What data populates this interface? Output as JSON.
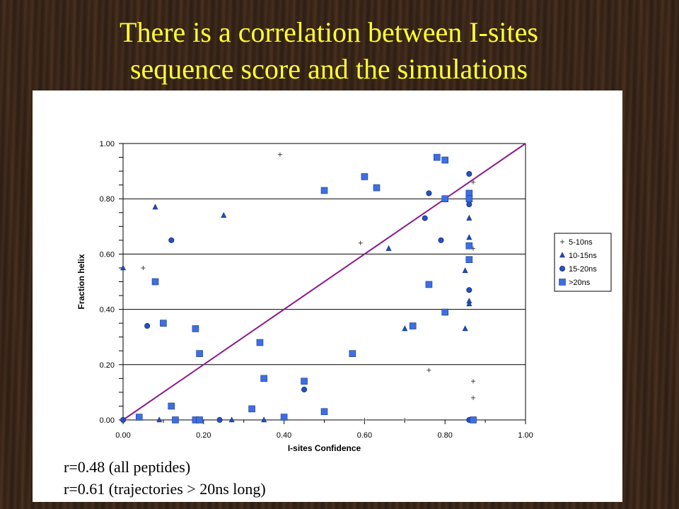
{
  "slide": {
    "title_line1": "There is a correlation between I-sites",
    "title_line2": "sequence score and the simulations",
    "caption_line1": "r=0.48 (all peptides)",
    "caption_line2": "r=0.61 (trajectories > 20ns long)"
  },
  "chart_data": {
    "type": "scatter",
    "title": "",
    "xlabel": "I-sites Confidence",
    "ylabel": "Fraction helix",
    "xlim": [
      0,
      1
    ],
    "ylim": [
      0,
      1
    ],
    "x_ticks": [
      "0.00",
      "0.20",
      "0.40",
      "0.60",
      "0.80",
      "1.00"
    ],
    "y_ticks": [
      "0.00",
      "0.20",
      "0.40",
      "0.60",
      "0.80",
      "1.00"
    ],
    "grid": "horizontal",
    "legend_position": "right",
    "diagonal_line": {
      "from": [
        0,
        0
      ],
      "to": [
        1,
        1
      ],
      "color": "#8b1a8b"
    },
    "series": [
      {
        "name": "5-10ns",
        "marker": "plus",
        "color": "#444444",
        "points": [
          [
            0.39,
            0.96
          ],
          [
            0.05,
            0.55
          ],
          [
            0.59,
            0.64
          ],
          [
            0.87,
            0.86
          ],
          [
            0.87,
            0.62
          ],
          [
            0.76,
            0.18
          ],
          [
            0.87,
            0.14
          ],
          [
            0.87,
            0.08
          ],
          [
            0.6,
            0.0
          ],
          [
            0.7,
            0.0
          ]
        ]
      },
      {
        "name": "10-15ns",
        "marker": "triangle",
        "color": "#1f4fbf",
        "points": [
          [
            0.0,
            0.55
          ],
          [
            0.08,
            0.77
          ],
          [
            0.25,
            0.74
          ],
          [
            0.66,
            0.62
          ],
          [
            0.7,
            0.33
          ],
          [
            0.85,
            0.54
          ],
          [
            0.85,
            0.33
          ],
          [
            0.86,
            0.73
          ],
          [
            0.86,
            0.66
          ],
          [
            0.86,
            0.42
          ],
          [
            0.86,
            0.43
          ],
          [
            0.09,
            0.0
          ],
          [
            0.27,
            0.0
          ],
          [
            0.35,
            0.0
          ]
        ]
      },
      {
        "name": "15-20ns",
        "marker": "circle",
        "color": "#2450c8",
        "points": [
          [
            0.0,
            0.0
          ],
          [
            0.06,
            0.34
          ],
          [
            0.12,
            0.65
          ],
          [
            0.24,
            0.0
          ],
          [
            0.45,
            0.11
          ],
          [
            0.75,
            0.73
          ],
          [
            0.76,
            0.82
          ],
          [
            0.79,
            0.65
          ],
          [
            0.86,
            0.89
          ],
          [
            0.86,
            0.78
          ],
          [
            0.86,
            0.47
          ],
          [
            0.86,
            0.0
          ]
        ]
      },
      {
        "name": ">20ns",
        "marker": "square",
        "color": "#3d6fe0",
        "points": [
          [
            0.04,
            0.01
          ],
          [
            0.08,
            0.5
          ],
          [
            0.1,
            0.35
          ],
          [
            0.12,
            0.05
          ],
          [
            0.13,
            0.0
          ],
          [
            0.18,
            0.33
          ],
          [
            0.18,
            0.0
          ],
          [
            0.19,
            0.24
          ],
          [
            0.19,
            0.0
          ],
          [
            0.32,
            0.04
          ],
          [
            0.34,
            0.28
          ],
          [
            0.35,
            0.15
          ],
          [
            0.4,
            0.01
          ],
          [
            0.45,
            0.14
          ],
          [
            0.5,
            0.83
          ],
          [
            0.5,
            0.03
          ],
          [
            0.57,
            0.24
          ],
          [
            0.6,
            0.88
          ],
          [
            0.63,
            0.84
          ],
          [
            0.72,
            0.34
          ],
          [
            0.76,
            0.49
          ],
          [
            0.78,
            0.95
          ],
          [
            0.8,
            0.94
          ],
          [
            0.8,
            0.8
          ],
          [
            0.8,
            0.39
          ],
          [
            0.86,
            0.82
          ],
          [
            0.86,
            0.8
          ],
          [
            0.86,
            0.63
          ],
          [
            0.86,
            0.58
          ],
          [
            0.87,
            0.0
          ]
        ]
      }
    ]
  }
}
